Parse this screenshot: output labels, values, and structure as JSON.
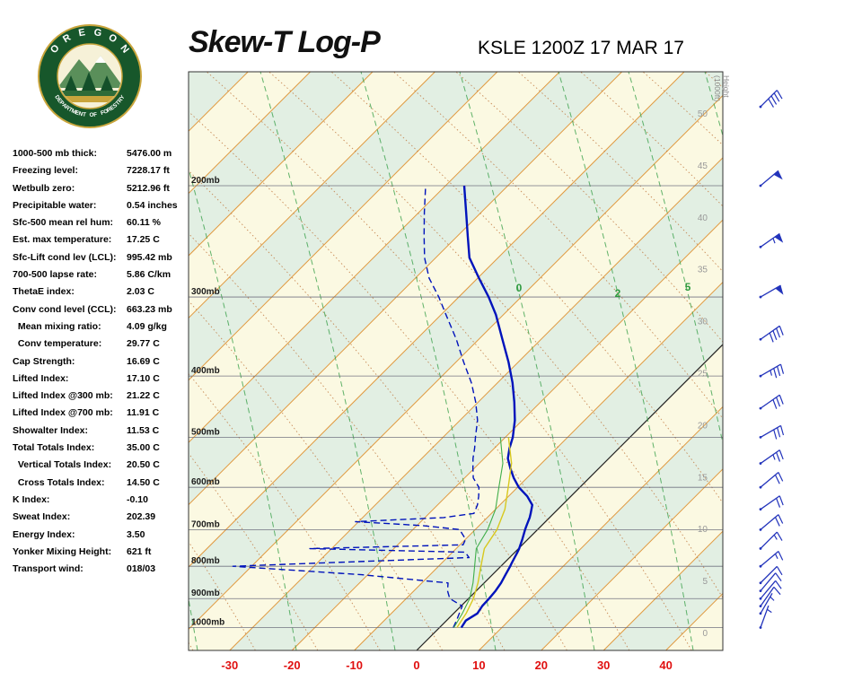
{
  "header": {
    "title": "Skew-T Log-P",
    "station_line": "KSLE 1200Z 17 MAR 17",
    "logo": {
      "top": "OREGON",
      "bottom": "DEPARTMENT OF FORESTRY"
    }
  },
  "indices": [
    {
      "label": "1000-500 mb thick:",
      "value": "5476.00 m"
    },
    {
      "label": "Freezing level:",
      "value": "7228.17 ft"
    },
    {
      "label": "Wetbulb zero:",
      "value": "5212.96 ft"
    },
    {
      "label": "Precipitable water:",
      "value": "0.54 inches"
    },
    {
      "label": "Sfc-500 mean rel hum:",
      "value": "60.11 %"
    },
    {
      "label": "Est. max temperature:",
      "value": "17.25 C"
    },
    {
      "label": "Sfc-Lift cond lev (LCL):",
      "value": "995.42 mb"
    },
    {
      "label": "700-500 lapse rate:",
      "value": "5.86 C/km"
    },
    {
      "label": "ThetaE index:",
      "value": "2.03 C"
    },
    {
      "label": "Conv cond level (CCL):",
      "value": "663.23 mb"
    },
    {
      "label": "  Mean mixing ratio:",
      "value": "4.09 g/kg"
    },
    {
      "label": "  Conv temperature:",
      "value": "29.77 C"
    },
    {
      "label": "Cap Strength:",
      "value": "16.69 C"
    },
    {
      "label": "Lifted Index:",
      "value": "17.10 C"
    },
    {
      "label": "Lifted Index @300 mb:",
      "value": "21.22 C"
    },
    {
      "label": "Lifted Index @700 mb:",
      "value": "11.91 C"
    },
    {
      "label": "Showalter Index:",
      "value": "11.53 C"
    },
    {
      "label": "Total Totals Index:",
      "value": "35.00 C"
    },
    {
      "label": "  Vertical Totals Index:",
      "value": "20.50 C"
    },
    {
      "label": "  Cross Totals Index:",
      "value": "14.50 C"
    },
    {
      "label": "K Index:",
      "value": "-0.10"
    },
    {
      "label": "Sweat Index:",
      "value": "202.39"
    },
    {
      "label": "Energy Index:",
      "value": "3.50"
    },
    {
      "label": "Yonker Mixing Height:",
      "value": "621 ft"
    },
    {
      "label": "Transport wind:",
      "value": "018/03"
    }
  ],
  "colors": {
    "isotherm": "#e0993f",
    "isotherm_zero": "#222222",
    "dry_adiabat": "#c07840",
    "moist_line": "#3aa04a",
    "band_cream": "#fbf9e2",
    "band_green": "#e2efe3",
    "pressure_line": "#666677",
    "profile_blue": "#0013bb",
    "axis_red": "#e01010",
    "wind_barb": "#2233bb",
    "logo_green": "#17572b",
    "logo_gold": "#c9a53c"
  },
  "chart_data": {
    "type": "line",
    "title": "Skew-T Log-P",
    "subtitle": "KSLE 1200Z 17 MAR 17",
    "x_axis": {
      "unit": "C",
      "ticks_c": [
        -30,
        -20,
        -10,
        0,
        10,
        20,
        30,
        40
      ]
    },
    "pressure_lines_mb": [
      200,
      300,
      400,
      500,
      600,
      700,
      800,
      900,
      1000
    ],
    "height_axis": {
      "title": "Height (1000ft)",
      "ticks_kft": [
        50,
        45,
        40,
        35,
        30,
        25,
        20,
        15,
        10,
        5,
        0
      ]
    },
    "moist_adiabat_labels": [
      "0",
      "2",
      "5"
    ],
    "series": [
      {
        "name": "Temperature",
        "color": "#0013bb",
        "style": "solid",
        "pressure_mb": [
          1000,
          975,
          950,
          925,
          900,
          875,
          850,
          825,
          800,
          790,
          775,
          760,
          750,
          740,
          725,
          700,
          690,
          680,
          670,
          660,
          640,
          620,
          600,
          580,
          560,
          540,
          520,
          500,
          470,
          440,
          410,
          380,
          350,
          320,
          300,
          280,
          260,
          240,
          220,
          200
        ],
        "values_c": [
          3.5,
          3.1,
          3.8,
          3.4,
          3.3,
          3.1,
          2.7,
          2.1,
          1.5,
          1.2,
          0.8,
          0.4,
          0.1,
          -0.3,
          -0.9,
          -2.0,
          -2.4,
          -2.8,
          -3.2,
          -3.7,
          -4.8,
          -7.0,
          -9.8,
          -12.1,
          -14.2,
          -16.2,
          -17.6,
          -18.8,
          -21.2,
          -24.2,
          -27.6,
          -31.6,
          -36.2,
          -41.2,
          -45.2,
          -49.8,
          -54.6,
          -58.4,
          -62.5,
          -67.0
        ]
      },
      {
        "name": "Dewpoint",
        "color": "#0013bb",
        "style": "dashed",
        "pressure_mb": [
          1000,
          975,
          950,
          925,
          900,
          875,
          850,
          825,
          800,
          790,
          775,
          760,
          750,
          740,
          725,
          700,
          690,
          680,
          670,
          660,
          640,
          620,
          600,
          580,
          560,
          540,
          520,
          500,
          470,
          440,
          410,
          380,
          350,
          320,
          300,
          280,
          260,
          240,
          220,
          200
        ],
        "values_c": [
          2.2,
          1.6,
          0.9,
          0.2,
          -3.0,
          -4.6,
          -5.8,
          -21.0,
          -43.0,
          -29.0,
          -6.5,
          -8.0,
          -33.5,
          -9.5,
          -10.0,
          -12.5,
          -19.0,
          -30.5,
          -17.0,
          -12.8,
          -13.6,
          -14.8,
          -16.2,
          -18.6,
          -20.2,
          -21.8,
          -23.2,
          -24.8,
          -27.2,
          -30.4,
          -34.2,
          -38.8,
          -43.6,
          -49.2,
          -53.2,
          -57.8,
          -61.8,
          -65.4,
          -69.2,
          -73.2
        ]
      },
      {
        "name": "Wet-bulb",
        "color": "#d8c81e",
        "style": "solid",
        "pressure_mb": [
          1000,
          950,
          900,
          850,
          800,
          750,
          700,
          650,
          600,
          550,
          500
        ],
        "values_c": [
          2.8,
          2.0,
          0.8,
          -1.0,
          -3.2,
          -5.5,
          -6.5,
          -8.5,
          -11.5,
          -14.8,
          -19.5
        ]
      },
      {
        "name": "Parcel",
        "color": "#3fae4a",
        "style": "solid",
        "pressure_mb": [
          1000,
          950,
          900,
          850,
          800,
          750,
          700,
          650,
          600,
          550,
          500
        ],
        "values_c": [
          2.3,
          1.4,
          0.2,
          -1.8,
          -4.2,
          -6.8,
          -8.0,
          -10.0,
          -13.0,
          -16.2,
          -20.8
        ]
      }
    ],
    "winds": [
      {
        "p": 1000,
        "d": 20,
        "s": 3
      },
      {
        "p": 950,
        "d": 30,
        "s": 5
      },
      {
        "p": 925,
        "d": 35,
        "s": 8
      },
      {
        "p": 900,
        "d": 40,
        "s": 10
      },
      {
        "p": 875,
        "d": 40,
        "s": 10
      },
      {
        "p": 850,
        "d": 45,
        "s": 12
      },
      {
        "p": 800,
        "d": 50,
        "s": 15
      },
      {
        "p": 750,
        "d": 45,
        "s": 15
      },
      {
        "p": 700,
        "d": 50,
        "s": 18
      },
      {
        "p": 650,
        "d": 55,
        "s": 20
      },
      {
        "p": 600,
        "d": 50,
        "s": 20
      },
      {
        "p": 550,
        "d": 55,
        "s": 25
      },
      {
        "p": 500,
        "d": 60,
        "s": 28
      },
      {
        "p": 450,
        "d": 55,
        "s": 30
      },
      {
        "p": 400,
        "d": 60,
        "s": 35
      },
      {
        "p": 350,
        "d": 55,
        "s": 40
      },
      {
        "p": 300,
        "d": 60,
        "s": 48
      },
      {
        "p": 250,
        "d": 55,
        "s": 55
      },
      {
        "p": 200,
        "d": 50,
        "s": 50
      },
      {
        "p": 150,
        "d": 45,
        "s": 42
      }
    ]
  }
}
